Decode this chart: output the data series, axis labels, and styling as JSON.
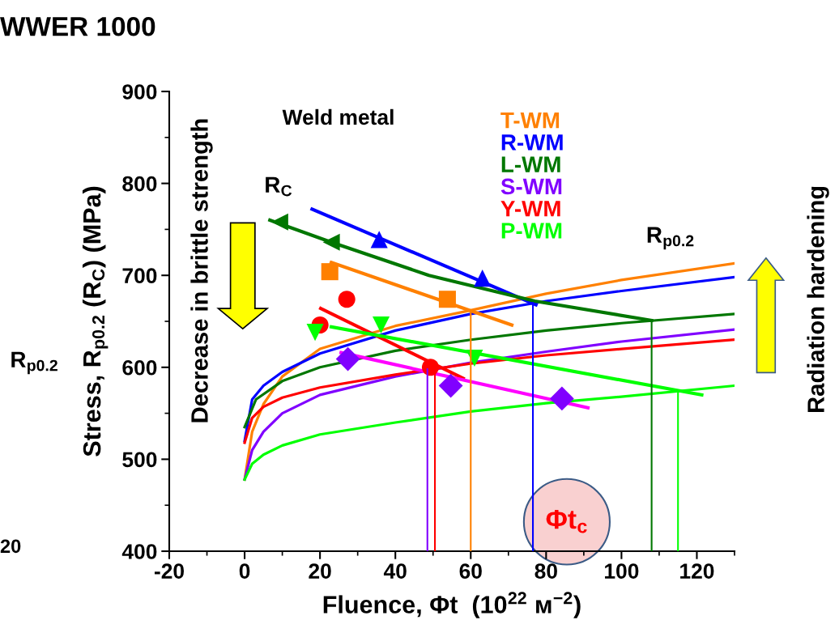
{
  "chart_data": {
    "type": "line",
    "title": "WWER 1000",
    "xlabel": "Fluence, Φt  (10$^{22}$ м$^{−2}$)",
    "ylabel": "Stress, R$_{p0.2}$ (R$_{C}$) (MPa)",
    "xlim": [
      -20,
      130
    ],
    "xticks": [
      -20,
      0,
      20,
      40,
      60,
      80,
      100,
      120
    ],
    "ylim": [
      400,
      900
    ],
    "yticks": [
      400,
      500,
      600,
      700,
      800,
      900
    ],
    "grid": false,
    "legend": "top",
    "annotations": [
      "Weld metal",
      "R$_{C}$",
      "R$_{p0.2}$",
      "Decrease in brittle strength",
      "Radiation hardening",
      "Φt$_{c}$",
      "R$_{p0.2}$",
      "20"
    ],
    "series": [
      {
        "color": "#ff8000",
        "x": [
          0,
          2,
          5,
          10,
          20,
          40,
          60,
          80,
          100,
          130
        ],
        "values": [
          478,
          530,
          560,
          590,
          620,
          645,
          662,
          680,
          695,
          713
        ]
      },
      {
        "color": "#0000ff",
        "x": [
          0,
          2,
          5,
          10,
          20,
          40,
          60,
          80,
          100,
          130
        ],
        "values": [
          520,
          565,
          580,
          595,
          615,
          640,
          658,
          672,
          683,
          698
        ]
      },
      {
        "color": "#007700",
        "x": [
          0,
          3,
          10,
          20,
          40,
          60,
          80,
          100,
          130
        ],
        "values": [
          535,
          565,
          585,
          600,
          618,
          630,
          640,
          648,
          658
        ]
      },
      {
        "color": "#8000ff",
        "x": [
          0,
          2,
          5,
          10,
          20,
          40,
          60,
          80,
          100,
          130
        ],
        "values": [
          478,
          510,
          530,
          550,
          570,
          590,
          605,
          617,
          628,
          641
        ]
      },
      {
        "color": "#ff0000",
        "x": [
          0,
          2,
          5,
          10,
          20,
          40,
          60,
          80,
          100,
          130
        ],
        "values": [
          518,
          545,
          557,
          567,
          578,
          592,
          604,
          613,
          620,
          630
        ]
      },
      {
        "color": "#00ff00",
        "x": [
          0,
          2,
          5,
          10,
          20,
          40,
          60,
          80,
          100,
          130
        ],
        "values": [
          478,
          495,
          505,
          515,
          527,
          540,
          552,
          561,
          568,
          580
        ]
      },
      {
        "color": "#0000ff",
        "x": [
          17.9,
          77.3
        ],
        "values": [
          772,
          668
        ]
      },
      {
        "color": "#007700",
        "x": [
          6.7,
          23,
          48.9,
          77,
          108
        ],
        "values": [
          760,
          736,
          700,
          672,
          651
        ]
      },
      {
        "color": "#ff8000",
        "x": [
          23,
          70.9
        ],
        "values": [
          714,
          646
        ]
      },
      {
        "color": "#ff0000",
        "x": [
          20.2,
          58
        ],
        "values": [
          664,
          588
        ]
      },
      {
        "color": "#ff00ff",
        "x": [
          25.6,
          91.1
        ],
        "values": [
          616,
          556
        ]
      },
      {
        "color": "#00ff00",
        "x": [
          23,
          121.3
        ],
        "values": [
          644,
          570
        ]
      },
      {
        "color": "#8000ff",
        "x": [
          48.5,
          48.5
        ],
        "values": [
          598,
          400
        ]
      },
      {
        "color": "#ff0000",
        "x": [
          50.5,
          50.5
        ],
        "values": [
          600,
          400
        ]
      },
      {
        "color": "#ff8000",
        "x": [
          60,
          60
        ],
        "values": [
          660,
          400
        ]
      },
      {
        "color": "#0000ff",
        "x": [
          76.5,
          76.5
        ],
        "values": [
          670,
          400
        ]
      },
      {
        "color": "#007700",
        "x": [
          108,
          108
        ],
        "values": [
          651,
          400
        ]
      },
      {
        "color": "#00ff00",
        "x": [
          115,
          115
        ],
        "values": [
          574,
          400
        ]
      },
      {
        "type": "scatter",
        "name": "T-WM",
        "color": "#ff8000",
        "marker": "square",
        "x": [
          22.6,
          53.8
        ],
        "values": [
          704,
          674
        ]
      },
      {
        "type": "scatter",
        "name": "R-WM",
        "color": "#0000ff",
        "marker": "triangle",
        "x": [
          35.7,
          63.1
        ],
        "values": [
          739,
          697
        ]
      },
      {
        "type": "scatter",
        "name": "L-WM",
        "color": "#007700",
        "marker": "triangle-left",
        "x": [
          9.3,
          23
        ],
        "values": [
          758,
          736
        ]
      },
      {
        "type": "scatter",
        "name": "S-WM",
        "color": "#8000ff",
        "marker": "diamond",
        "x": [
          27.4,
          54.7,
          84.2
        ],
        "values": [
          609,
          580,
          566
        ]
      },
      {
        "type": "scatter",
        "name": "Y-WM",
        "color": "#ff0000",
        "marker": "circle",
        "x": [
          20,
          27.1,
          49.3
        ],
        "values": [
          646,
          674,
          600
        ]
      },
      {
        "type": "scatter",
        "name": "P-WM",
        "color": "#00ff00",
        "marker": "triangle-down",
        "x": [
          18.7,
          36.2,
          61
        ],
        "values": [
          638,
          646,
          610
        ]
      }
    ]
  }
}
